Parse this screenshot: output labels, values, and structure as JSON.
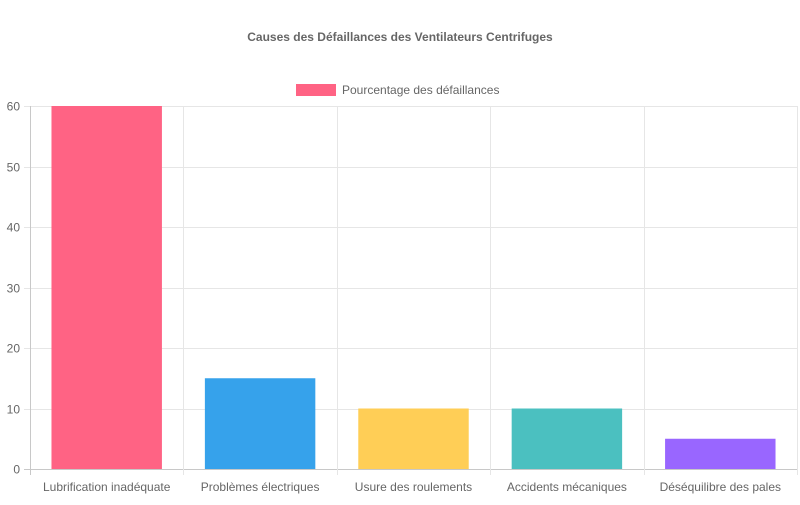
{
  "chart_data": {
    "type": "bar",
    "title": "Causes des Défaillances des Ventilateurs Centrifuges",
    "categories": [
      "Lubrification inadéquate",
      "Problèmes électriques",
      "Usure des roulements",
      "Accidents mécaniques",
      "Déséquilibre des pales"
    ],
    "series": [
      {
        "name": "Pourcentage des défaillances",
        "values": [
          60,
          15,
          10,
          10,
          5
        ],
        "colors": [
          "#ff6384",
          "#36a2eb",
          "#ffce56",
          "#4bc0c0",
          "#9966ff"
        ]
      }
    ],
    "yticks": [
      "0",
      "10",
      "20",
      "30",
      "40",
      "50",
      "60"
    ],
    "ylim": [
      0,
      60
    ],
    "grid": true,
    "legend_position": "top"
  }
}
